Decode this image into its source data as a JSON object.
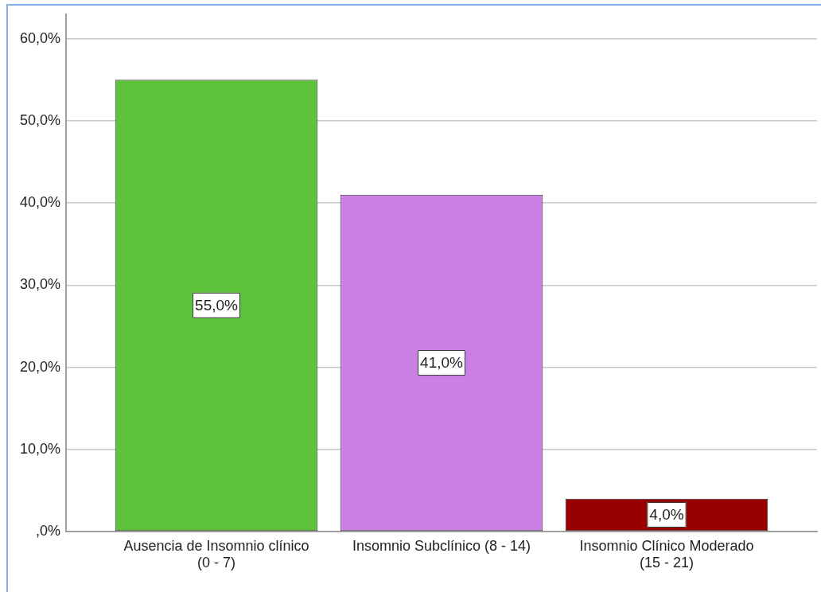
{
  "chart_data": {
    "type": "bar",
    "categories": [
      "Ausencia de Insomnio clínico (0 - 7)",
      "Insomnio Subclínico (8 - 14)",
      "Insomnio Clínico Moderado (15 - 21)"
    ],
    "values": [
      55,
      41,
      4
    ],
    "colors": [
      "#5ec33a",
      "#c97fe4",
      "#990000"
    ],
    "value_labels": [
      "55,0%",
      "41,0%",
      "4,0%"
    ],
    "ylim": [
      0,
      63
    ],
    "yticks": [
      {
        "value": 0,
        "label": ",0%"
      },
      {
        "value": 10,
        "label": "10,0%"
      },
      {
        "value": 20,
        "label": "20,0%"
      },
      {
        "value": 30,
        "label": "30,0%"
      },
      {
        "value": 40,
        "label": "40,0%"
      },
      {
        "value": 50,
        "label": "50,0%"
      },
      {
        "value": 60,
        "label": "60,0%"
      }
    ],
    "grid": "y"
  }
}
